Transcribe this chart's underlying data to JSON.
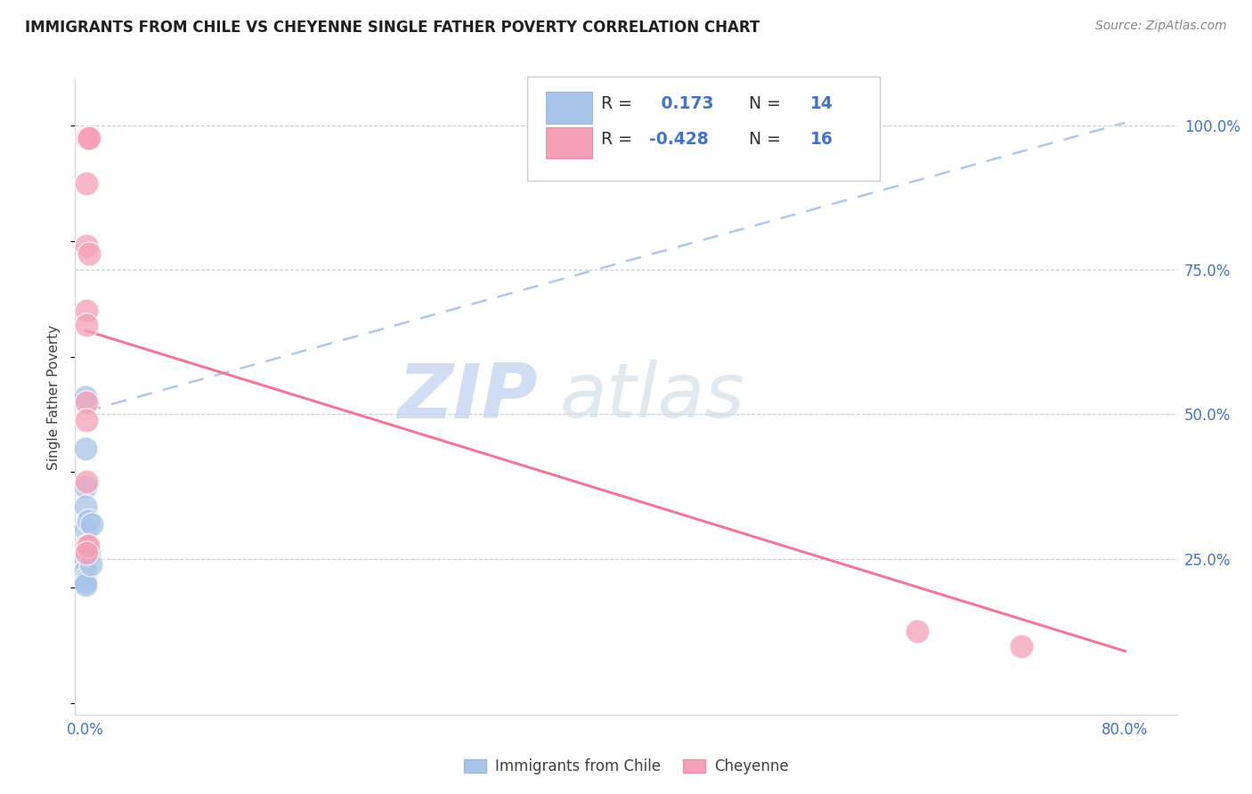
{
  "title": "IMMIGRANTS FROM CHILE VS CHEYENNE SINGLE FATHER POVERTY CORRELATION CHART",
  "source": "Source: ZipAtlas.com",
  "ylabel": "Single Father Poverty",
  "legend_label1": "Immigrants from Chile",
  "legend_label2": "Cheyenne",
  "R1": 0.173,
  "N1": 14,
  "R2": -0.428,
  "N2": 16,
  "watermark_zip": "ZIP",
  "watermark_atlas": "atlas",
  "blue_color": "#a8c4e8",
  "pink_color": "#f4a0b8",
  "blue_line_color": "#b0c8e8",
  "pink_line_color": "#f07898",
  "blue_scatter": [
    [
      0.0,
      0.53
    ],
    [
      0.0,
      0.44
    ],
    [
      0.0,
      0.375
    ],
    [
      0.0,
      0.34
    ],
    [
      0.0,
      0.3
    ],
    [
      0.0,
      0.25
    ],
    [
      0.0,
      0.23
    ],
    [
      0.0,
      0.215
    ],
    [
      0.0,
      0.21
    ],
    [
      0.0,
      0.205
    ],
    [
      0.002,
      0.315
    ],
    [
      0.003,
      0.26
    ],
    [
      0.004,
      0.24
    ],
    [
      0.005,
      0.31
    ]
  ],
  "pink_scatter": [
    [
      0.001,
      0.978
    ],
    [
      0.002,
      0.978
    ],
    [
      0.003,
      0.978
    ],
    [
      0.001,
      0.9
    ],
    [
      0.001,
      0.792
    ],
    [
      0.003,
      0.778
    ],
    [
      0.001,
      0.68
    ],
    [
      0.001,
      0.655
    ],
    [
      0.001,
      0.52
    ],
    [
      0.001,
      0.49
    ],
    [
      0.001,
      0.383
    ],
    [
      0.001,
      0.272
    ],
    [
      0.002,
      0.272
    ],
    [
      0.001,
      0.26
    ],
    [
      0.64,
      0.125
    ],
    [
      0.72,
      0.098
    ]
  ],
  "blue_line_x": [
    0.0,
    0.8
  ],
  "blue_line_y": [
    0.505,
    1.005
  ],
  "pink_line_x": [
    0.0,
    0.8
  ],
  "pink_line_y": [
    0.645,
    0.09
  ],
  "xmin": -0.008,
  "xmax": 0.84,
  "ymin": -0.02,
  "ymax": 1.08,
  "ytick_vals": [
    0.25,
    0.5,
    0.75,
    1.0
  ],
  "ytick_labels": [
    "25.0%",
    "50.0%",
    "75.0%",
    "100.0%"
  ]
}
